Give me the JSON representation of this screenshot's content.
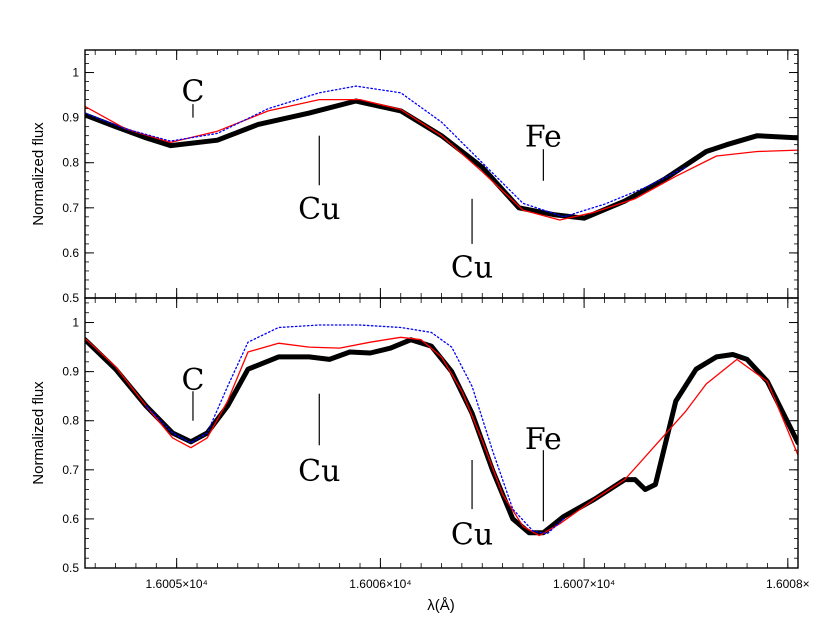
{
  "chart_data": [
    {
      "type": "line",
      "panel": "top",
      "ylabel": "Normalized flux",
      "xlim": [
        16004.55,
        16008.05
      ],
      "ylim": [
        0.5,
        1.05
      ],
      "yticks": [
        0.5,
        0.6,
        0.7,
        0.8,
        0.9,
        1
      ],
      "ytick_labels": [
        "0.5",
        "0.6",
        "0.7",
        "0.8",
        "0.9",
        "1"
      ],
      "series": [
        {
          "color": "#000000",
          "style": "thick-solid",
          "x": [
            16004.55,
            16004.7,
            16004.85,
            16004.97,
            16005.2,
            16005.4,
            16005.65,
            16005.88,
            16006.1,
            16006.3,
            16006.5,
            16006.68,
            16006.85,
            16007.0,
            16007.2,
            16007.4,
            16007.6,
            16007.7,
            16007.85,
            16008.05
          ],
          "y": [
            0.906,
            0.88,
            0.855,
            0.838,
            0.85,
            0.885,
            0.91,
            0.937,
            0.915,
            0.86,
            0.79,
            0.7,
            0.685,
            0.677,
            0.715,
            0.765,
            0.825,
            0.84,
            0.86,
            0.855
          ]
        },
        {
          "color": "#ff0000",
          "style": "thin-solid",
          "x": [
            16004.55,
            16004.75,
            16004.97,
            16005.2,
            16005.45,
            16005.7,
            16005.9,
            16006.1,
            16006.3,
            16006.5,
            16006.7,
            16006.88,
            16007.05,
            16007.25,
            16007.45,
            16007.65,
            16007.85,
            16008.05
          ],
          "y": [
            0.925,
            0.875,
            0.845,
            0.87,
            0.915,
            0.94,
            0.94,
            0.918,
            0.86,
            0.78,
            0.695,
            0.673,
            0.69,
            0.72,
            0.77,
            0.815,
            0.825,
            0.828
          ]
        },
        {
          "color": "#0000ff",
          "style": "dotted",
          "x": [
            16004.55,
            16004.75,
            16004.97,
            16005.2,
            16005.45,
            16005.7,
            16005.88,
            16006.1,
            16006.3,
            16006.5,
            16006.7,
            16006.9,
            16007.1,
            16007.3,
            16007.5
          ],
          "y": [
            0.91,
            0.875,
            0.848,
            0.865,
            0.92,
            0.955,
            0.97,
            0.955,
            0.89,
            0.8,
            0.71,
            0.68,
            0.708,
            0.745,
            0.79
          ]
        }
      ],
      "annotations": [
        {
          "text": "C",
          "x": 16005.08,
          "line_y": [
            0.9,
            0.93
          ],
          "label_y": 0.96
        },
        {
          "text": "Cu",
          "x": 16005.7,
          "line_y": [
            0.75,
            0.86
          ],
          "label_y": 0.7
        },
        {
          "text": "Cu",
          "x": 16006.45,
          "line_y": [
            0.62,
            0.72
          ],
          "label_y": 0.57
        },
        {
          "text": "Fe",
          "x": 16006.8,
          "line_y": [
            0.76,
            0.83
          ],
          "label_y": 0.86
        }
      ]
    },
    {
      "type": "line",
      "panel": "bottom",
      "xlabel": "λ(Å)",
      "ylabel": "Normalized flux",
      "xlim": [
        16004.55,
        16008.05
      ],
      "ylim": [
        0.5,
        1.05
      ],
      "yticks": [
        0.5,
        0.6,
        0.7,
        0.8,
        0.9,
        1
      ],
      "ytick_labels": [
        "0.5",
        "0.6",
        "0.7",
        "0.8",
        "0.9",
        "1"
      ],
      "xticks": [
        16005,
        16006,
        16007,
        16008
      ],
      "xtick_labels": [
        "1.6005×10⁴",
        "1.6006×10⁴",
        "1.6007×10⁴",
        "1.6008×"
      ],
      "series": [
        {
          "color": "#000000",
          "style": "thick-solid",
          "x": [
            16004.55,
            16004.7,
            16004.85,
            16004.98,
            16005.07,
            16005.15,
            16005.25,
            16005.35,
            16005.5,
            16005.65,
            16005.75,
            16005.85,
            16005.95,
            16006.05,
            16006.15,
            16006.25,
            16006.35,
            16006.45,
            16006.55,
            16006.65,
            16006.73,
            16006.8,
            16006.9,
            16007.05,
            16007.2,
            16007.25,
            16007.3,
            16007.35,
            16007.45,
            16007.55,
            16007.65,
            16007.73,
            16007.8,
            16007.9,
            16008.05
          ],
          "y": [
            0.965,
            0.905,
            0.83,
            0.775,
            0.757,
            0.775,
            0.83,
            0.905,
            0.93,
            0.93,
            0.925,
            0.94,
            0.938,
            0.948,
            0.965,
            0.952,
            0.9,
            0.815,
            0.7,
            0.6,
            0.572,
            0.572,
            0.605,
            0.64,
            0.68,
            0.68,
            0.66,
            0.67,
            0.84,
            0.905,
            0.93,
            0.935,
            0.925,
            0.88,
            0.755
          ]
        },
        {
          "color": "#ff0000",
          "style": "thin-solid",
          "x": [
            16004.55,
            16004.7,
            16004.85,
            16004.98,
            16005.07,
            16005.15,
            16005.25,
            16005.35,
            16005.5,
            16005.65,
            16005.8,
            16005.95,
            16006.1,
            16006.2,
            16006.3,
            16006.4,
            16006.5,
            16006.6,
            16006.7,
            16006.78,
            16006.88,
            16007.05,
            16007.2,
            16007.35,
            16007.5,
            16007.6,
            16007.75,
            16007.9,
            16008.05
          ],
          "y": [
            0.968,
            0.91,
            0.83,
            0.765,
            0.745,
            0.765,
            0.84,
            0.94,
            0.958,
            0.95,
            0.948,
            0.96,
            0.97,
            0.965,
            0.93,
            0.86,
            0.76,
            0.65,
            0.585,
            0.566,
            0.59,
            0.64,
            0.68,
            0.75,
            0.82,
            0.875,
            0.925,
            0.88,
            0.73
          ]
        },
        {
          "color": "#0000ff",
          "style": "dotted",
          "x": [
            16004.85,
            16004.98,
            16005.07,
            16005.15,
            16005.25,
            16005.35,
            16005.5,
            16005.7,
            16005.9,
            16006.1,
            16006.25,
            16006.35,
            16006.45,
            16006.55,
            16006.65,
            16006.75,
            16006.82,
            16006.9
          ],
          "y": [
            0.83,
            0.775,
            0.755,
            0.775,
            0.87,
            0.96,
            0.99,
            0.995,
            0.995,
            0.99,
            0.98,
            0.95,
            0.87,
            0.74,
            0.62,
            0.575,
            0.57,
            0.6
          ]
        }
      ],
      "annotations": [
        {
          "text": "C",
          "x": 16005.08,
          "line_y": [
            0.8,
            0.86
          ],
          "label_y": 0.885
        },
        {
          "text": "Cu",
          "x": 16005.7,
          "line_y": [
            0.75,
            0.855
          ],
          "label_y": 0.7
        },
        {
          "text": "Cu",
          "x": 16006.45,
          "line_y": [
            0.62,
            0.72
          ],
          "label_y": 0.57
        },
        {
          "text": "Fe",
          "x": 16006.8,
          "line_y": [
            0.595,
            0.74
          ],
          "label_y": 0.765
        }
      ]
    }
  ]
}
